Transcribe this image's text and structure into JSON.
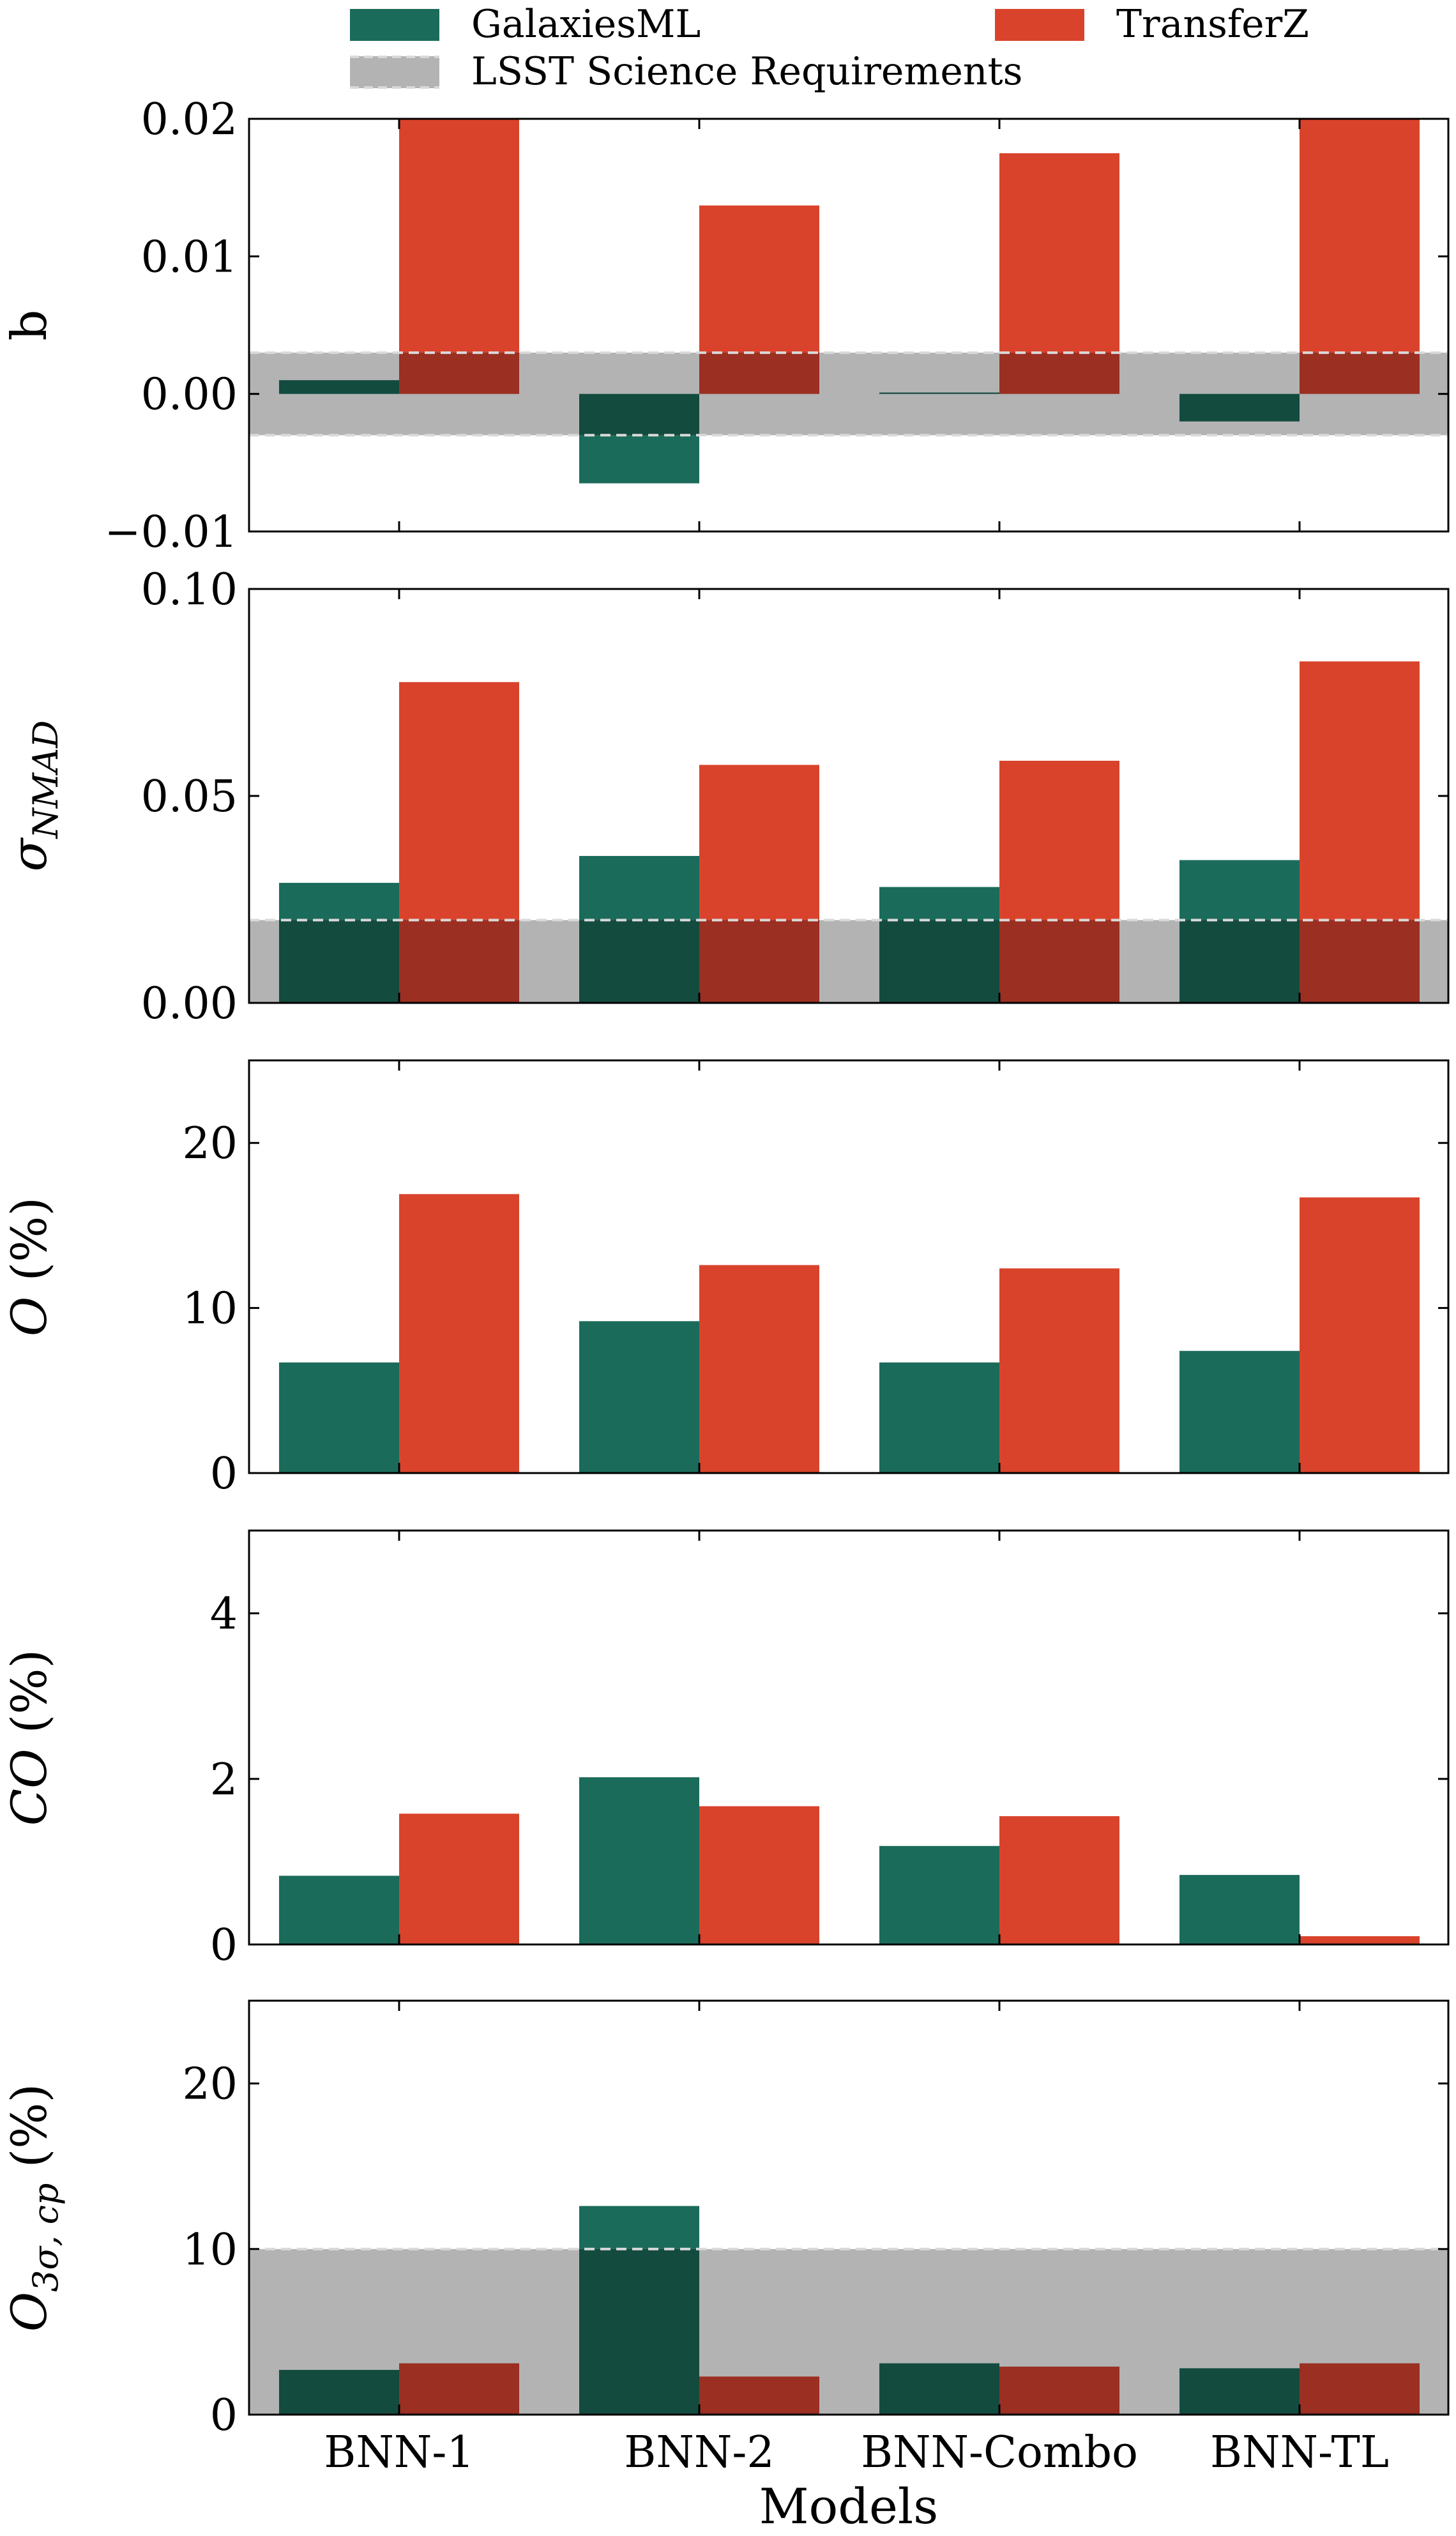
{
  "legend": {
    "items": [
      {
        "label": "GalaxiesML",
        "color": "#1b6b5a"
      },
      {
        "label": "TransferZ",
        "color": "#d9432c"
      },
      {
        "label": "LSST Science Requirements",
        "color": "#b3b3b3"
      }
    ]
  },
  "chart_data": {
    "type": "bar",
    "xlabel": "Models",
    "categories": [
      "BNN-1",
      "BNN-2",
      "BNN-Combo",
      "BNN-TL"
    ],
    "panels": [
      {
        "id": "bias",
        "ylabel": "b",
        "ylim": [
          -0.01,
          0.02
        ],
        "yticks": [
          -0.01,
          0.0,
          0.01,
          0.02
        ],
        "ytick_labels": [
          "−0.01",
          "0.00",
          "0.01",
          "0.02"
        ],
        "requirement": {
          "min": -0.003,
          "max": 0.003,
          "dashed_lines": [
            0.003,
            -0.003
          ]
        },
        "series": [
          {
            "name": "GalaxiesML",
            "values": [
              0.001,
              -0.0065,
              0.0001,
              -0.002
            ]
          },
          {
            "name": "TransferZ",
            "values": [
              0.02,
              0.0137,
              0.0175,
              0.02
            ]
          }
        ]
      },
      {
        "id": "nmad",
        "ylabel": "σ",
        "ylabel_sub": "NMAD",
        "ylim": [
          0.0,
          0.1
        ],
        "yticks": [
          0.0,
          0.05,
          0.1
        ],
        "ytick_labels": [
          "0.00",
          "0.05",
          "0.10"
        ],
        "requirement": {
          "min": 0.0,
          "max": 0.02,
          "dashed_lines": [
            0.02
          ]
        },
        "series": [
          {
            "name": "GalaxiesML",
            "values": [
              0.029,
              0.0355,
              0.028,
              0.0345
            ]
          },
          {
            "name": "TransferZ",
            "values": [
              0.0775,
              0.0575,
              0.0585,
              0.0825
            ]
          }
        ]
      },
      {
        "id": "outlier",
        "ylabel": "O (%)",
        "ylim": [
          0,
          25
        ],
        "yticks": [
          0,
          10,
          20
        ],
        "ytick_labels": [
          "0",
          "10",
          "20"
        ],
        "requirement": null,
        "series": [
          {
            "name": "GalaxiesML",
            "values": [
              6.7,
              9.2,
              6.7,
              7.4
            ]
          },
          {
            "name": "TransferZ",
            "values": [
              16.9,
              12.6,
              12.4,
              16.7
            ]
          }
        ]
      },
      {
        "id": "catastrophic",
        "ylabel": "CO (%)",
        "ylim": [
          0,
          5
        ],
        "yticks": [
          0,
          2,
          4
        ],
        "ytick_labels": [
          "0",
          "2",
          "4"
        ],
        "requirement": null,
        "series": [
          {
            "name": "GalaxiesML",
            "values": [
              0.83,
              2.02,
              1.19,
              0.84
            ]
          },
          {
            "name": "TransferZ",
            "values": [
              1.58,
              1.67,
              1.55,
              0.1
            ]
          }
        ]
      },
      {
        "id": "outlier3sigma",
        "ylabel": "O",
        "ylabel_sub": "3σ, cp",
        "ylabel_suffix": "(%)",
        "ylim": [
          0,
          25
        ],
        "yticks": [
          0,
          10,
          20
        ],
        "ytick_labels": [
          "0",
          "10",
          "20"
        ],
        "requirement": {
          "min": 0,
          "max": 10,
          "dashed_lines": [
            10
          ]
        },
        "series": [
          {
            "name": "GalaxiesML",
            "values": [
              2.7,
              12.6,
              3.1,
              2.8
            ]
          },
          {
            "name": "TransferZ",
            "values": [
              3.1,
              2.3,
              2.9,
              3.1
            ]
          }
        ]
      }
    ]
  }
}
